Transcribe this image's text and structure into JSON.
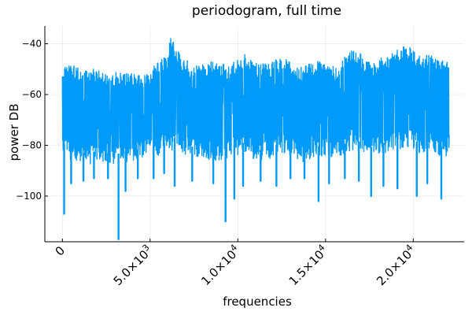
{
  "chart_data": {
    "type": "line",
    "title": "periodogram, full time",
    "xlabel": "frequencies",
    "ylabel": "power DB",
    "xlim": [
      -1000,
      22900
    ],
    "ylim": [
      -118,
      -33
    ],
    "x_ticks": [
      {
        "value": 0,
        "label": "0"
      },
      {
        "value": 5000,
        "label": "5.0×10",
        "exp": "3"
      },
      {
        "value": 10000,
        "label": "1.0×10",
        "exp": "4"
      },
      {
        "value": 15000,
        "label": "1.5×10",
        "exp": "4"
      },
      {
        "value": 20000,
        "label": "2.0×10",
        "exp": "4"
      }
    ],
    "y_ticks": [
      {
        "value": -40,
        "label": "−40"
      },
      {
        "value": -60,
        "label": "−60"
      },
      {
        "value": -80,
        "label": "−80"
      },
      {
        "value": -100,
        "label": "−100"
      }
    ],
    "grid": true,
    "legend": "none",
    "series": [
      {
        "color": "#009af9",
        "x_range": [
          0,
          22050
        ],
        "upper_envelope": [
          [
            0,
            -49
          ],
          [
            500,
            -48
          ],
          [
            1000,
            -50
          ],
          [
            1500,
            -49
          ],
          [
            2000,
            -50
          ],
          [
            2500,
            -50
          ],
          [
            3000,
            -51
          ],
          [
            3500,
            -52
          ],
          [
            4000,
            -51
          ],
          [
            4500,
            -52
          ],
          [
            5000,
            -50
          ],
          [
            5500,
            -47
          ],
          [
            6000,
            -44
          ],
          [
            6200,
            -36
          ],
          [
            6500,
            -42
          ],
          [
            7000,
            -46
          ],
          [
            7500,
            -49
          ],
          [
            8000,
            -48
          ],
          [
            8500,
            -47
          ],
          [
            9000,
            -48
          ],
          [
            9500,
            -48
          ],
          [
            10000,
            -45
          ],
          [
            10500,
            -44
          ],
          [
            11000,
            -47
          ],
          [
            11500,
            -48
          ],
          [
            12000,
            -47
          ],
          [
            12500,
            -45
          ],
          [
            13000,
            -47
          ],
          [
            13500,
            -49
          ],
          [
            14000,
            -48
          ],
          [
            14500,
            -47
          ],
          [
            15000,
            -46
          ],
          [
            15500,
            -49
          ],
          [
            16000,
            -46
          ],
          [
            16500,
            -42
          ],
          [
            17000,
            -44
          ],
          [
            17500,
            -47
          ],
          [
            18000,
            -46
          ],
          [
            18500,
            -44
          ],
          [
            19000,
            -43
          ],
          [
            19500,
            -40
          ],
          [
            20000,
            -42
          ],
          [
            20500,
            -45
          ],
          [
            21000,
            -44
          ],
          [
            21500,
            -47
          ],
          [
            22050,
            -46
          ]
        ],
        "lower_envelope": [
          [
            0,
            -83
          ],
          [
            500,
            -86
          ],
          [
            1000,
            -87
          ],
          [
            1500,
            -88
          ],
          [
            2000,
            -86
          ],
          [
            2500,
            -87
          ],
          [
            3000,
            -88
          ],
          [
            3500,
            -87
          ],
          [
            4000,
            -86
          ],
          [
            4500,
            -86
          ],
          [
            5000,
            -85
          ],
          [
            5500,
            -84
          ],
          [
            6000,
            -83
          ],
          [
            6500,
            -81
          ],
          [
            7000,
            -84
          ],
          [
            7500,
            -85
          ],
          [
            8000,
            -85
          ],
          [
            8500,
            -86
          ],
          [
            9000,
            -86
          ],
          [
            9500,
            -85
          ],
          [
            10000,
            -84
          ],
          [
            10500,
            -83
          ],
          [
            11000,
            -86
          ],
          [
            11500,
            -86
          ],
          [
            12000,
            -85
          ],
          [
            12500,
            -83
          ],
          [
            13000,
            -84
          ],
          [
            13500,
            -87
          ],
          [
            14000,
            -86
          ],
          [
            14500,
            -85
          ],
          [
            15000,
            -84
          ],
          [
            15500,
            -86
          ],
          [
            16000,
            -84
          ],
          [
            16500,
            -82
          ],
          [
            17000,
            -83
          ],
          [
            17500,
            -85
          ],
          [
            18000,
            -84
          ],
          [
            18500,
            -83
          ],
          [
            19000,
            -82
          ],
          [
            19500,
            -81
          ],
          [
            20000,
            -82
          ],
          [
            20500,
            -84
          ],
          [
            21000,
            -83
          ],
          [
            21500,
            -85
          ],
          [
            22050,
            -84
          ]
        ],
        "low_spikes": [
          [
            100,
            -107
          ],
          [
            500,
            -95
          ],
          [
            1200,
            -94
          ],
          [
            1800,
            -93
          ],
          [
            2600,
            -93
          ],
          [
            3200,
            -117
          ],
          [
            3600,
            -98
          ],
          [
            4300,
            -93
          ],
          [
            5200,
            -93
          ],
          [
            5800,
            -91
          ],
          [
            6400,
            -96
          ],
          [
            7400,
            -94
          ],
          [
            8600,
            -95
          ],
          [
            9300,
            -110
          ],
          [
            9800,
            -101
          ],
          [
            10300,
            -96
          ],
          [
            11300,
            -94
          ],
          [
            12200,
            -96
          ],
          [
            13000,
            -93
          ],
          [
            13800,
            -93
          ],
          [
            14600,
            -102
          ],
          [
            15200,
            -95
          ],
          [
            16100,
            -93
          ],
          [
            16900,
            -94
          ],
          [
            17600,
            -100
          ],
          [
            18300,
            -96
          ],
          [
            19100,
            -97
          ],
          [
            20200,
            -100
          ],
          [
            20800,
            -95
          ],
          [
            21600,
            -101
          ]
        ]
      }
    ]
  }
}
